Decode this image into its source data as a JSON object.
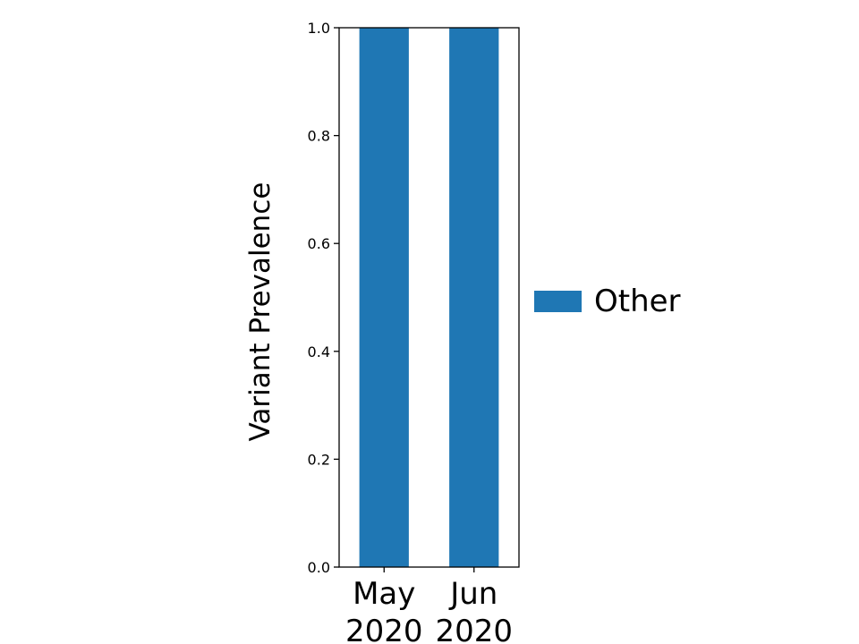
{
  "chart_data": {
    "type": "bar",
    "stacked": true,
    "categories": [
      [
        "May",
        "2020"
      ],
      [
        "Jun",
        "2020"
      ]
    ],
    "series": [
      {
        "name": "Other",
        "values": [
          1.0,
          1.0
        ],
        "color": "#1f77b4"
      }
    ],
    "title": "",
    "xlabel": "",
    "ylabel": "Variant Prevalence",
    "ylim": [
      0.0,
      1.0
    ],
    "yticks": [
      0.0,
      0.2,
      0.4,
      0.6,
      0.8,
      1.0
    ],
    "ytick_labels": [
      "0.0",
      "0.2",
      "0.4",
      "0.6",
      "0.8",
      "1.0"
    ],
    "grid": false,
    "legend_position": "right"
  }
}
